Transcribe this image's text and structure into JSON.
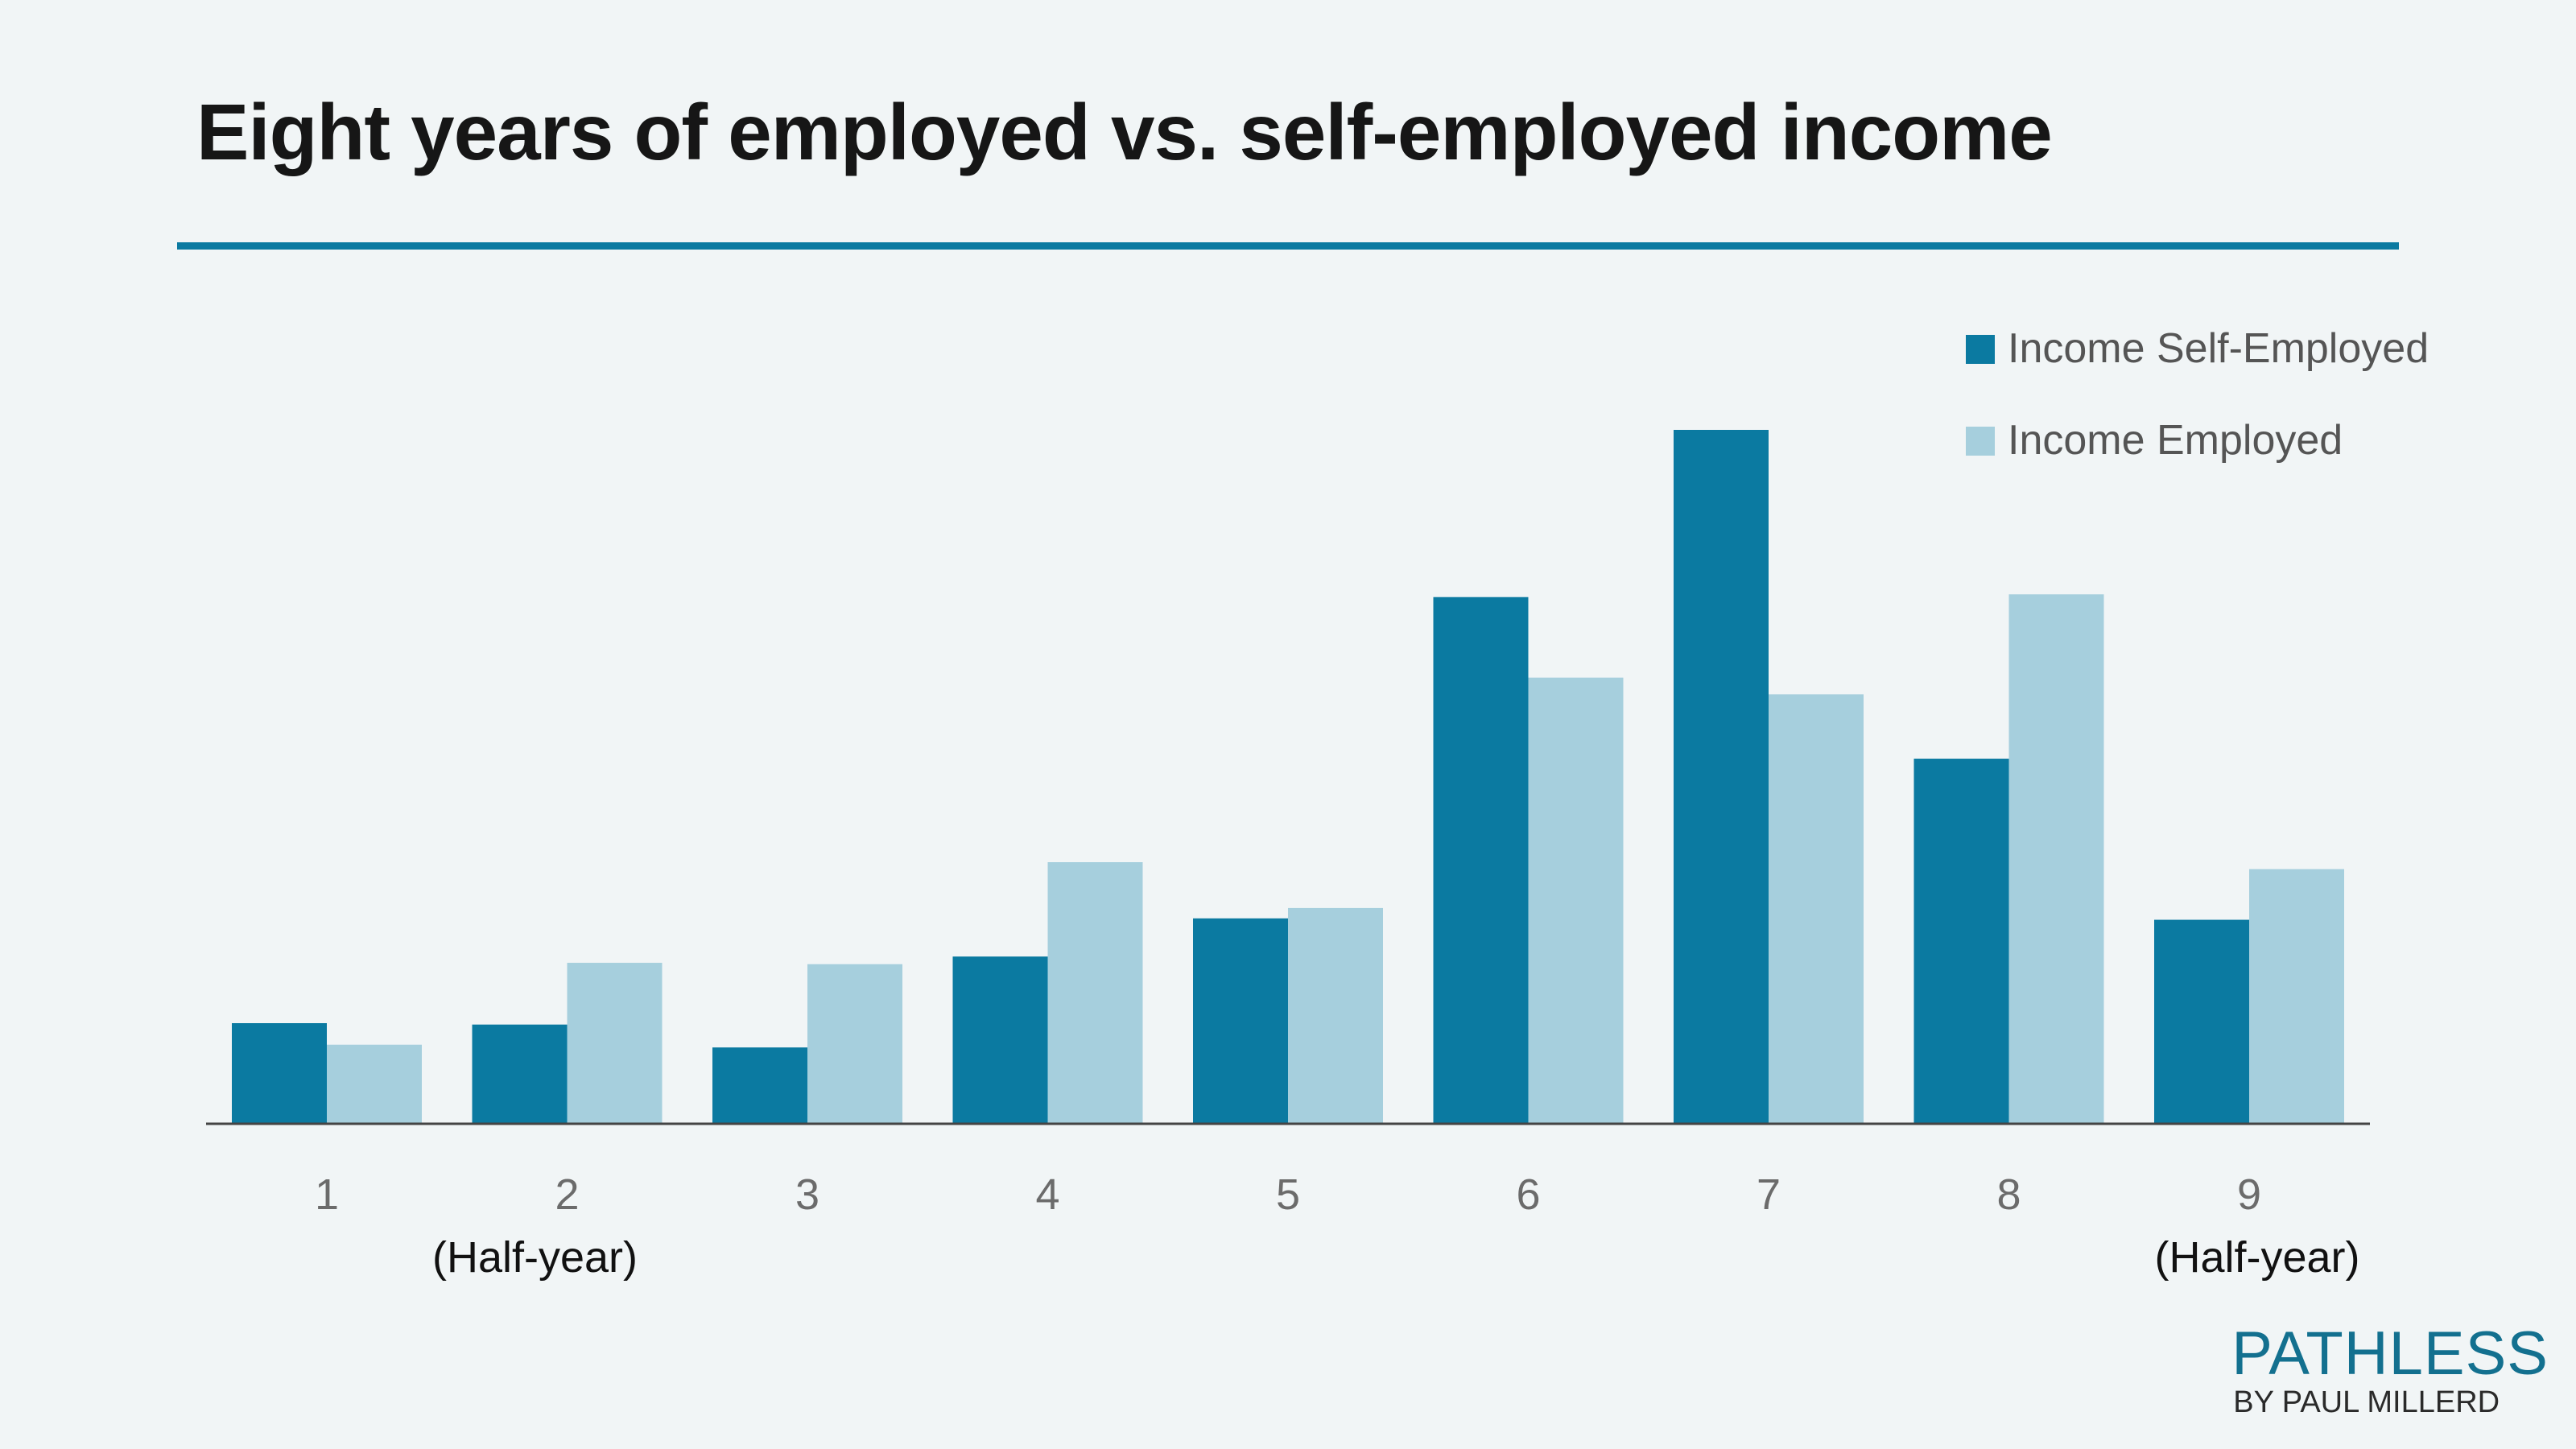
{
  "title": "Eight years of employed vs. self-employed income",
  "colors": {
    "self_employed": "#0b7aa1",
    "employed": "#a6cfdd",
    "accent": "#0b7aa1",
    "axis": "#444444"
  },
  "brand": {
    "name": "PATHLESS",
    "byline": "BY PAUL MILLERD"
  },
  "chart_data": {
    "type": "bar",
    "title": "Eight years of employed vs. self-employed income",
    "xlabel": "",
    "ylabel": "",
    "categories": [
      "1",
      "2",
      "3",
      "4",
      "5",
      "6",
      "7",
      "8",
      "9"
    ],
    "category_sublabels": [
      "",
      "(Half-year)",
      "",
      "",
      "",
      "",
      "",
      "",
      "(Half-year)"
    ],
    "series": [
      {
        "name": "Income Self-Employed",
        "values": [
          14.5,
          14.3,
          11.0,
          24.1,
          29.6,
          75.9,
          100.0,
          52.6,
          29.4
        ]
      },
      {
        "name": "Income Employed",
        "values": [
          11.4,
          23.2,
          23.0,
          37.7,
          31.1,
          64.3,
          61.9,
          76.3,
          36.7
        ]
      }
    ],
    "ylim": [
      0,
      100
    ],
    "grid": false,
    "y_axis_shown": false,
    "legend_position": "top-right"
  }
}
